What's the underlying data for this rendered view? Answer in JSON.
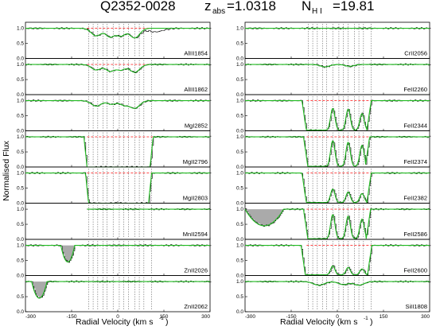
{
  "header": {
    "qso": "Q2352-0028",
    "z_sym": "z",
    "z_sub": "abs",
    "z_val": "=1.0318",
    "n_sym": "N",
    "n_sub": "H I",
    "n_val": "=19.81"
  },
  "axes": {
    "ylabel": "Normalised Flux",
    "xlabel_left": "Radial Velocity (km s",
    "xlabel_right": "Radial Velocity (km s",
    "xlabel_exp": "-1",
    "xlabel_close": ")"
  },
  "colors": {
    "data": "#000000",
    "fit": "#22bb22",
    "continuum": "#ff3333",
    "components": "#444444",
    "blend": "#aaaaaa"
  },
  "chart_data": {
    "type": "line",
    "title": "Q2352-0028  z_abs=1.0318  N_H I=19.81",
    "xlabel": "Radial Velocity (km s^-1)",
    "ylabel": "Normalised Flux",
    "xlim": [
      -300,
      300
    ],
    "xticks": [
      -300,
      -150,
      0,
      150,
      300
    ],
    "ylim": [
      0,
      1.2
    ],
    "yticks": [
      0.0,
      0.5,
      1.0
    ],
    "left_column": {
      "component_velocities": [
        -95,
        -80,
        -65,
        -48,
        -35,
        -15,
        5,
        20,
        35,
        55,
        70,
        85,
        110
      ],
      "panels": [
        {
          "ion": "AlIII1854",
          "yticks": [
            "0.0",
            "0.5",
            "1.0"
          ],
          "continuum": true,
          "dips": [
            [
              -70,
              0.25,
              16
            ],
            [
              -25,
              0.28,
              14
            ],
            [
              10,
              0.25,
              14
            ],
            [
              55,
              0.32,
              16
            ]
          ],
          "extra": [
            [
              120,
              0.12,
              25
            ]
          ]
        },
        {
          "ion": "AlIII1862",
          "yticks": [
            "0.0",
            "0.5",
            "1.0"
          ],
          "continuum": true,
          "dips": [
            [
              -70,
              0.18,
              16
            ],
            [
              -25,
              0.22,
              14
            ],
            [
              10,
              0.18,
              14
            ],
            [
              55,
              0.26,
              16
            ]
          ],
          "extra": []
        },
        {
          "ion": "MgI2852",
          "yticks": [
            "0.0",
            "0.5",
            "1.0"
          ],
          "continuum": false,
          "dips": [
            [
              -70,
              0.18,
              16
            ],
            [
              -20,
              0.12,
              14
            ],
            [
              20,
              0.14,
              14
            ],
            [
              55,
              0.25,
              16
            ]
          ],
          "extra": []
        },
        {
          "ion": "MgII2796",
          "yticks": [
            "0.0",
            "0.5",
            "1.0"
          ],
          "continuum": true,
          "saturated": [
            -110,
            115
          ]
        },
        {
          "ion": "MgII2803",
          "yticks": [
            "0.0",
            "0.5",
            "1.0"
          ],
          "continuum": true,
          "saturated": [
            -105,
            110
          ]
        },
        {
          "ion": "MnII2594",
          "yticks": [
            "0.0",
            "0.5",
            "1.0"
          ],
          "continuum": true,
          "coverage": [
            -100,
            300
          ],
          "dips": [],
          "extra": []
        },
        {
          "ion": "ZnII2026",
          "yticks": [
            "0.0",
            "0.5",
            "1.0"
          ],
          "continuum": false,
          "blend": [
            -185,
            -140
          ],
          "dips": [],
          "extra": []
        },
        {
          "ion": "ZnII2062",
          "yticks": [
            "0.0",
            "0.5"
          ],
          "continuum": false,
          "blend": [
            -280,
            -230
          ],
          "dips": [],
          "extra": []
        }
      ]
    },
    "right_column": {
      "component_velocities": [
        -95,
        -80,
        -65,
        -48,
        -35,
        -15,
        5,
        20,
        35,
        55,
        70,
        85,
        110
      ],
      "panels": [
        {
          "ion": "CrII2056",
          "yticks": [
            "0.0",
            "0.5",
            "1.0"
          ],
          "continuum": false,
          "dips": [],
          "extra": []
        },
        {
          "ion": "FeII2260",
          "yticks": [
            "0.0",
            "0.5",
            "1.0"
          ],
          "continuum": false,
          "dips": [
            [
              -40,
              0.08,
              14
            ],
            [
              40,
              0.06,
              14
            ]
          ],
          "extra": []
        },
        {
          "ion": "FeII2344",
          "yticks": [
            "0.0",
            "0.5",
            "1.0"
          ],
          "continuum": true,
          "trough": [
            -115,
            110
          ],
          "peaks": [
            [
              -15,
              0.72
            ],
            [
              35,
              0.7
            ],
            [
              80,
              0.55
            ]
          ]
        },
        {
          "ion": "FeII2374",
          "yticks": [
            "0.0",
            "0.5",
            "1.0"
          ],
          "continuum": true,
          "trough": [
            -110,
            105
          ],
          "peaks": [
            [
              -15,
              0.85
            ],
            [
              35,
              0.8
            ],
            [
              80,
              0.7
            ]
          ]
        },
        {
          "ion": "FeII2382",
          "yticks": [
            "0.0",
            "0.5",
            "1.0"
          ],
          "continuum": true,
          "trough": [
            -115,
            110
          ],
          "peaks": [
            [
              -15,
              0.45
            ],
            [
              35,
              0.35
            ],
            [
              80,
              0.3
            ]
          ]
        },
        {
          "ion": "FeII2586",
          "yticks": [
            "0.0",
            "0.5",
            "1.0"
          ],
          "continuum": true,
          "trough": [
            -110,
            108
          ],
          "peaks": [
            [
              -15,
              0.8
            ],
            [
              35,
              0.75
            ],
            [
              80,
              0.65
            ]
          ],
          "blend": [
            -300,
            -175
          ]
        },
        {
          "ion": "FeII2600",
          "yticks": [
            "0.0",
            "0.5",
            "1.0"
          ],
          "continuum": true,
          "trough": [
            -118,
            112
          ],
          "peaks": [
            [
              -15,
              0.3
            ],
            [
              35,
              0.25
            ],
            [
              80,
              0.2
            ]
          ]
        },
        {
          "ion": "SiII1808",
          "yticks": [
            "0.0",
            "0.5",
            "1.0"
          ],
          "continuum": false,
          "dips": [
            [
              -60,
              0.12,
              18
            ],
            [
              20,
              0.1,
              16
            ],
            [
              70,
              0.12,
              16
            ]
          ],
          "extra": []
        }
      ]
    }
  }
}
